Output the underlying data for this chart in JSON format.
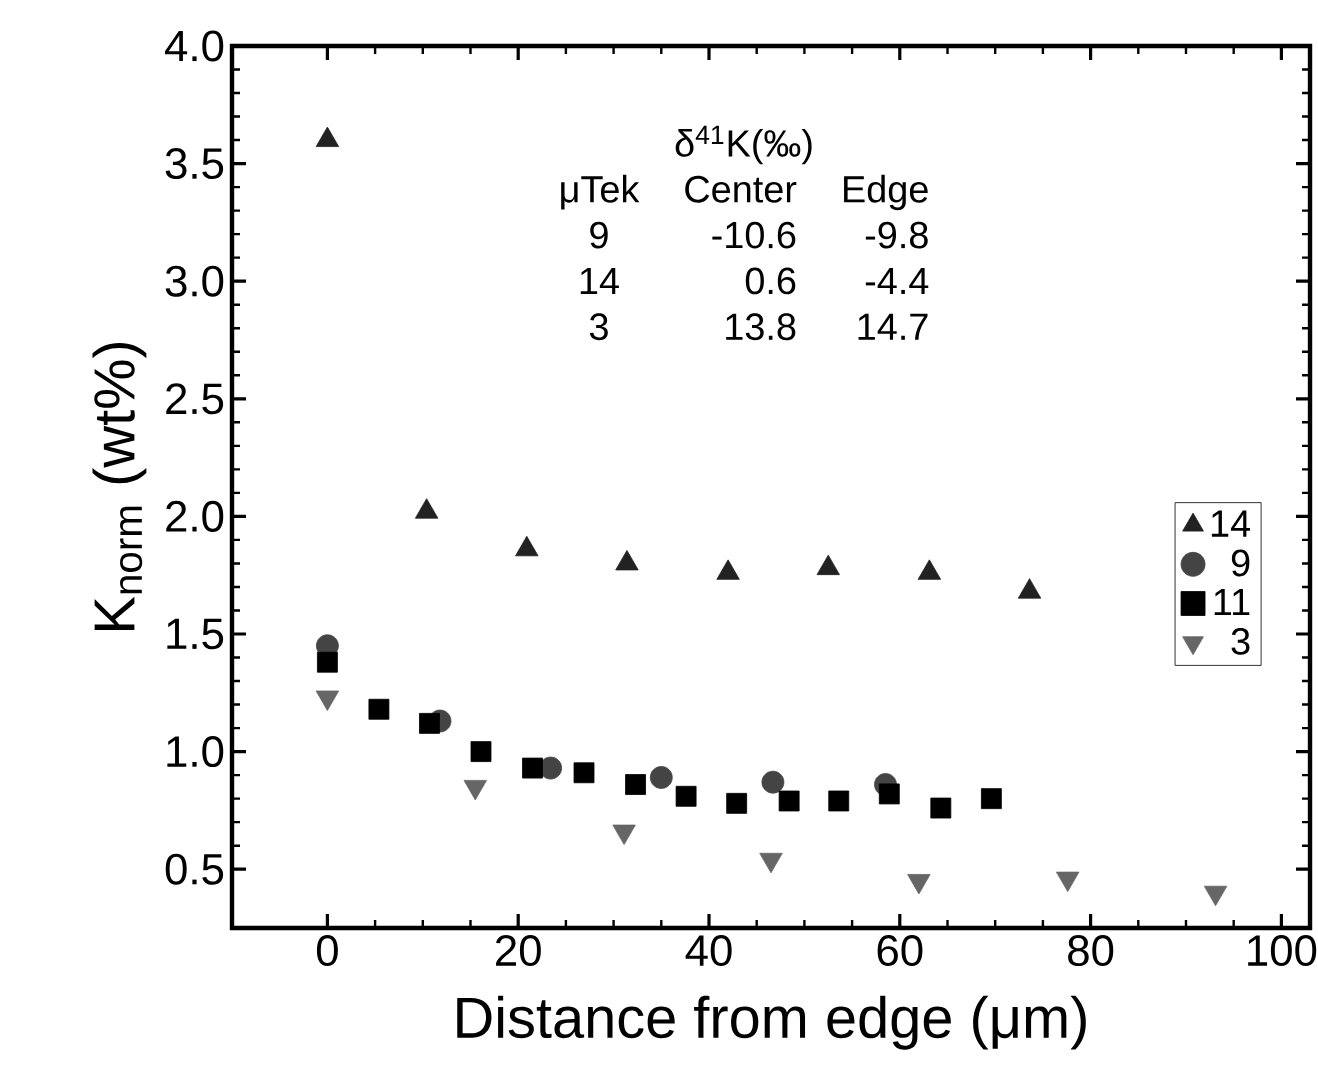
{
  "chart_data": {
    "type": "scatter",
    "xlabel": "Distance from edge (μm)",
    "ylabel": "K$_{norm}$ (wt%)",
    "xlim": [
      -10,
      103
    ],
    "ylim": [
      0.25,
      4.0
    ],
    "xticks": [
      0,
      20,
      40,
      60,
      80,
      100
    ],
    "yticks": [
      0.5,
      {
        "value": 1.0,
        "label": "1.0"
      },
      1.5,
      {
        "value": 2.0,
        "label": "2.0"
      },
      2.5,
      {
        "value": 3.0,
        "label": "3.0"
      },
      3.5,
      {
        "value": 4.0,
        "label": "4.0"
      }
    ],
    "grid": false,
    "legend": "right",
    "annotations": [
      "δ$^{41}$K(‰)",
      "μTek",
      "Center",
      "Edge",
      "9",
      "-10.6",
      "-9.8",
      "14",
      "0.6",
      "-4.4",
      "3",
      "13.8",
      "14.7"
    ],
    "series": [
      {
        "name": "14",
        "color": "#222222",
        "marker": "triangle",
        "x": [
          0,
          10.4,
          20.9,
          31.4,
          42.0,
          52.5,
          63.1,
          73.6
        ],
        "values": [
          3.6,
          2.02,
          1.86,
          1.8,
          1.76,
          1.78,
          1.76,
          1.68
        ]
      },
      {
        "name": "9",
        "color": "#444444",
        "marker": "circle",
        "x": [
          0,
          11.8,
          23.4,
          35.0,
          46.7,
          58.5
        ],
        "values": [
          1.45,
          1.13,
          0.93,
          0.89,
          0.87,
          0.86
        ]
      },
      {
        "name": "11",
        "color": "#000000",
        "marker": "square",
        "x": [
          0,
          5.4,
          10.7,
          16.1,
          21.5,
          26.9,
          32.3,
          37.6,
          42.9,
          48.4,
          53.6,
          58.9,
          64.3,
          69.6
        ],
        "values": [
          1.38,
          1.18,
          1.12,
          1.0,
          0.93,
          0.91,
          0.86,
          0.81,
          0.78,
          0.79,
          0.79,
          0.82,
          0.76,
          0.8
        ]
      },
      {
        "name": "3",
        "color": "#666666",
        "marker": "triangle-down",
        "x": [
          0,
          15.5,
          31.1,
          46.5,
          62.0,
          77.6,
          93.1
        ],
        "values": [
          1.23,
          0.85,
          0.66,
          0.54,
          0.45,
          0.46,
          0.4
        ]
      }
    ]
  }
}
